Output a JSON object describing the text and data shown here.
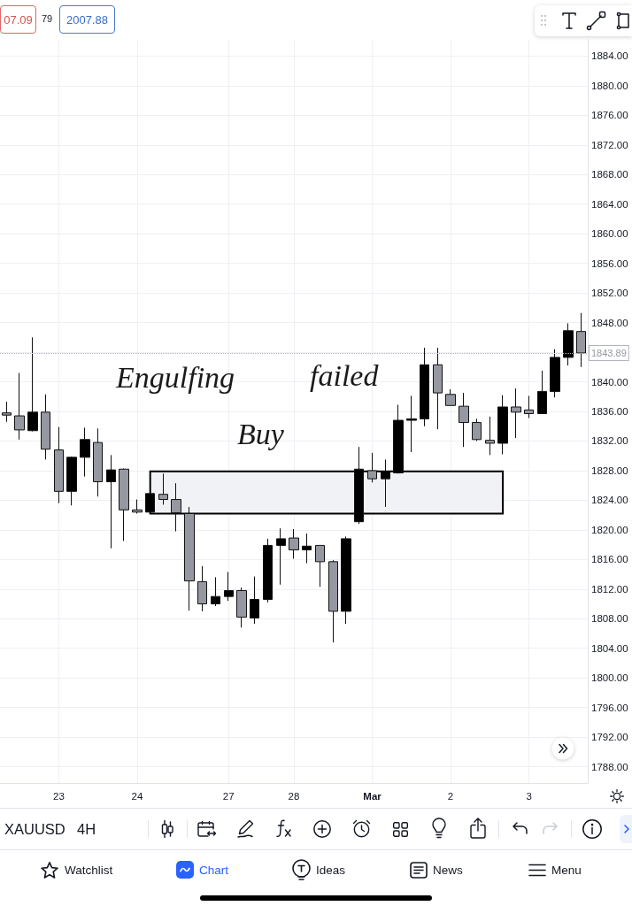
{
  "chart_data": {
    "type": "candlestick",
    "categories": [
      null,
      null,
      null,
      null,
      "23",
      null,
      null,
      null,
      null,
      null,
      "24",
      null,
      null,
      null,
      null,
      null,
      null,
      "27",
      null,
      null,
      null,
      null,
      "28",
      null,
      null,
      null,
      null,
      null,
      "Mar",
      null,
      null,
      null,
      null,
      null,
      "2",
      null,
      null,
      null,
      null,
      null,
      "3",
      null,
      null,
      null,
      null
    ],
    "ohlc": [
      [
        1835.8,
        1837.3,
        1834.6,
        1835.5
      ],
      [
        1835.4,
        1841.2,
        1832.2,
        1833.5
      ],
      [
        1833.4,
        1846.0,
        1833.3,
        1835.9
      ],
      [
        1835.9,
        1838.3,
        1829.5,
        1830.9
      ],
      [
        1830.8,
        1833.9,
        1823.6,
        1825.2
      ],
      [
        1825.2,
        1829.9,
        1823.3,
        1829.8
      ],
      [
        1829.8,
        1833.8,
        1827.2,
        1832.2
      ],
      [
        1831.8,
        1833.7,
        1824.5,
        1826.5
      ],
      [
        1826.5,
        1830.1,
        1817.5,
        1828.1
      ],
      [
        1828.2,
        1828.3,
        1818.5,
        1822.7
      ],
      [
        1822.7,
        1824.1,
        1822.2,
        1822.4
      ],
      [
        1822.4,
        1825.0,
        1822.2,
        1824.9
      ],
      [
        1824.8,
        1827.6,
        1823.4,
        1824.1
      ],
      [
        1824.1,
        1826.3,
        1819.8,
        1822.3
      ],
      [
        1822.2,
        1823.1,
        1809.1,
        1813.1
      ],
      [
        1813.0,
        1815.1,
        1809.0,
        1810.0
      ],
      [
        1810.0,
        1813.6,
        1809.7,
        1811.0
      ],
      [
        1811.0,
        1814.3,
        1810.4,
        1811.8
      ],
      [
        1811.8,
        1812.2,
        1806.8,
        1808.2
      ],
      [
        1808.1,
        1813.7,
        1807.3,
        1810.6
      ],
      [
        1810.6,
        1818.8,
        1810.2,
        1817.9
      ],
      [
        1817.9,
        1820.2,
        1812.6,
        1818.8
      ],
      [
        1818.9,
        1820.1,
        1816.1,
        1817.3
      ],
      [
        1817.3,
        1819.5,
        1815.5,
        1817.8
      ],
      [
        1817.9,
        1817.9,
        1812.3,
        1815.7
      ],
      [
        1815.7,
        1815.9,
        1804.8,
        1809.0
      ],
      [
        1809.0,
        1819.1,
        1807.3,
        1818.8
      ],
      [
        1821.1,
        1831.2,
        1820.8,
        1828.2
      ],
      [
        1828.0,
        1830.4,
        1826.4,
        1826.9
      ],
      [
        1826.9,
        1829.5,
        1823.1,
        1827.9
      ],
      [
        1827.7,
        1836.9,
        1827.6,
        1834.8
      ],
      [
        1834.8,
        1838.1,
        1830.5,
        1835.0
      ],
      [
        1835.0,
        1844.6,
        1834.0,
        1842.3
      ],
      [
        1842.3,
        1844.6,
        1833.6,
        1838.5
      ],
      [
        1838.3,
        1839.0,
        1836.8,
        1836.8
      ],
      [
        1836.7,
        1838.5,
        1831.2,
        1834.5
      ],
      [
        1834.5,
        1835.0,
        1832.0,
        1832.2
      ],
      [
        1832.1,
        1835.3,
        1830.1,
        1831.7
      ],
      [
        1831.7,
        1838.2,
        1830.2,
        1836.6
      ],
      [
        1836.6,
        1839.1,
        1832.4,
        1835.9
      ],
      [
        1836.2,
        1838.1,
        1835.1,
        1835.7
      ],
      [
        1835.7,
        1841.5,
        1835.7,
        1838.7
      ],
      [
        1838.7,
        1844.4,
        1837.9,
        1843.3
      ],
      [
        1843.3,
        1847.9,
        1842.2,
        1846.9
      ],
      [
        1846.8,
        1849.3,
        1842.0,
        1843.89
      ]
    ],
    "colors": [
      "#9598a1",
      "#9598a1",
      "#000000",
      "#9598a1",
      "#9598a1",
      "#000000",
      "#000000",
      "#9598a1",
      "#000000",
      "#9598a1",
      "#9598a1",
      "#000000",
      "#9598a1",
      "#9598a1",
      "#9598a1",
      "#9598a1",
      "#000000",
      "#000000",
      "#9598a1",
      "#000000",
      "#000000",
      "#000000",
      "#9598a1",
      "#000000",
      "#9598a1",
      "#9598a1",
      "#000000",
      "#000000",
      "#9598a1",
      "#000000",
      "#000000",
      "#000000",
      "#000000",
      "#9598a1",
      "#9598a1",
      "#9598a1",
      "#9598a1",
      "#9598a1",
      "#000000",
      "#9598a1",
      "#9598a1",
      "#000000",
      "#000000",
      "#000000",
      "#9598a1"
    ],
    "ylim": [
      1785.8,
      1886.2
    ],
    "yticks": [
      {
        "value": 1788,
        "label": "1788.00"
      },
      {
        "value": 1792,
        "label": "1792.00"
      },
      {
        "value": 1796,
        "label": "1796.00"
      },
      {
        "value": 1800,
        "label": "1800.00"
      },
      {
        "value": 1804,
        "label": "1804.00"
      },
      {
        "value": 1808,
        "label": "1808.00"
      },
      {
        "value": 1812,
        "label": "1812.00"
      },
      {
        "value": 1816,
        "label": "1816.00"
      },
      {
        "value": 1820,
        "label": "1820.00"
      },
      {
        "value": 1824,
        "label": "1824.00"
      },
      {
        "value": 1828,
        "label": "1828.00"
      },
      {
        "value": 1832,
        "label": "1832.00"
      },
      {
        "value": 1836,
        "label": "1836.00"
      },
      {
        "value": 1840,
        "label": "1840.00"
      },
      {
        "value": 1844,
        "label": null
      },
      {
        "value": 1848,
        "label": "1848.00"
      },
      {
        "value": 1852,
        "label": "1852.00"
      },
      {
        "value": 1856,
        "label": "1856.00"
      },
      {
        "value": 1860,
        "label": "1860.00"
      },
      {
        "value": 1864,
        "label": "1864.00"
      },
      {
        "value": 1868,
        "label": "1868.00"
      },
      {
        "value": 1872,
        "label": "1872.00"
      },
      {
        "value": 1876,
        "label": "1876.00"
      },
      {
        "value": 1880,
        "label": "1880.00"
      },
      {
        "value": 1884,
        "label": "1884.00"
      }
    ],
    "grid": true,
    "ref_lines": [
      {
        "axis": "y",
        "value": 1843.89,
        "label": "1843.89",
        "line_style": "dotted"
      }
    ],
    "bands": [
      {
        "axis": "y",
        "from": 1822.2,
        "to": 1827.9,
        "color": "#f0f2f5"
      }
    ],
    "annotations": [
      "Engulfing",
      "failed",
      "Buy",
      "07.09",
      "79",
      "2007.88",
      "XAUUSD",
      "4H",
      "Watchlist",
      "Chart",
      "Ideas",
      "News",
      "Menu"
    ]
  }
}
